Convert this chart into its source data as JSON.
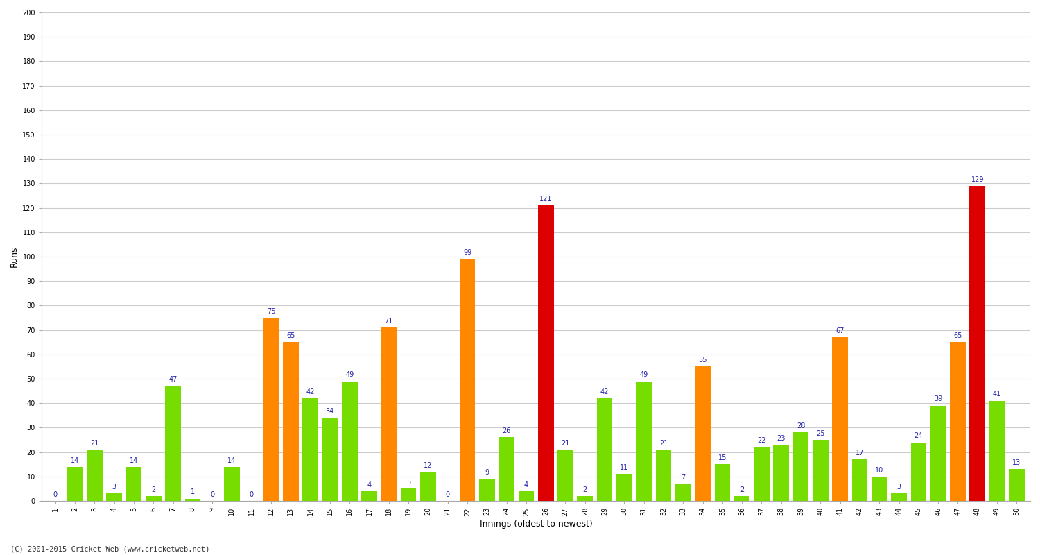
{
  "innings": [
    1,
    2,
    3,
    4,
    5,
    6,
    7,
    8,
    9,
    10,
    11,
    12,
    13,
    14,
    15,
    16,
    17,
    18,
    19,
    20,
    21,
    22,
    23,
    24,
    25,
    26,
    27,
    28,
    29,
    30,
    31,
    32,
    33,
    34,
    35,
    36,
    37,
    38,
    39,
    40,
    41,
    42,
    43,
    44,
    45,
    46,
    47,
    48,
    49,
    50
  ],
  "runs": [
    0,
    14,
    21,
    3,
    14,
    2,
    47,
    1,
    0,
    14,
    0,
    75,
    65,
    42,
    34,
    49,
    4,
    71,
    5,
    12,
    0,
    99,
    9,
    26,
    4,
    121,
    21,
    2,
    42,
    11,
    49,
    21,
    7,
    55,
    15,
    2,
    22,
    23,
    28,
    25,
    67,
    17,
    10,
    3,
    24,
    39,
    65,
    129,
    41,
    13
  ],
  "title": "",
  "xlabel": "Innings (oldest to newest)",
  "ylabel": "Runs",
  "ylim": [
    0,
    200
  ],
  "yticks": [
    0,
    10,
    20,
    30,
    40,
    50,
    60,
    70,
    80,
    90,
    100,
    110,
    120,
    130,
    140,
    150,
    160,
    170,
    180,
    190,
    200
  ],
  "color_normal": "#77dd00",
  "color_fifty": "#ff8800",
  "color_hundred": "#dd0000",
  "fifty_threshold": 50,
  "hundred_threshold": 100,
  "bg_color": "#ffffff",
  "grid_color": "#cccccc",
  "label_color": "#2222aa",
  "label_fontsize": 7,
  "tick_fontsize": 7,
  "axis_label_fontsize": 9,
  "footer_text": "(C) 2001-2015 Cricket Web (www.cricketweb.net)"
}
